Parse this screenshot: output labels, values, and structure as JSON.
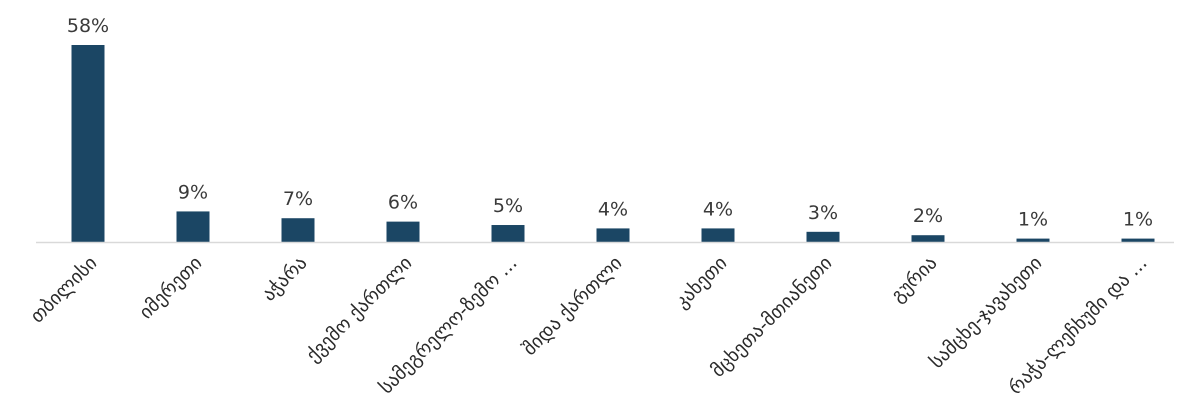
{
  "chart_data": {
    "type": "bar",
    "categories": [
      "თბილისი",
      "იმერეთი",
      "აჭარა",
      "ქვემო ქართლი",
      "სამეგრელო-ზემო ...",
      "შიდა ქართლი",
      "კახეთი",
      "მცხეთა-მთიანეთი",
      "გურია",
      "სამცხე-ჯავახეთი",
      "რაჭა-ლეჩხუმი და ..."
    ],
    "values": [
      58,
      9,
      7,
      6,
      5,
      4,
      4,
      3,
      2,
      1,
      1
    ],
    "value_labels": [
      "58%",
      "9%",
      "7%",
      "6%",
      "5%",
      "4%",
      "4%",
      "3%",
      "2%",
      "1%",
      "1%"
    ],
    "unit": "%",
    "ylim": [
      0,
      60
    ],
    "grid": false,
    "legend": "none",
    "colors": {
      "bar": "#1b4664",
      "baseline": "#d9d9d9",
      "text": "#3a3a3a"
    }
  }
}
